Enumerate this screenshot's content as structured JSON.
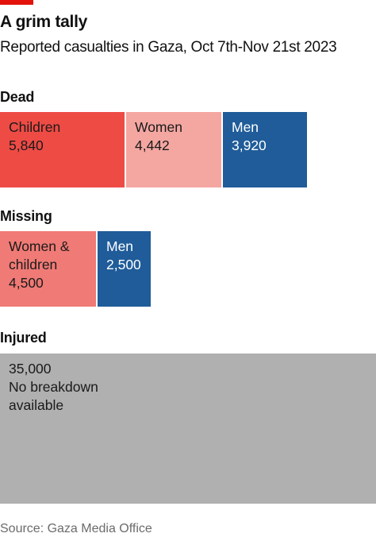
{
  "title": "A grim tally",
  "subtitle": "Reported casualties in Gaza, Oct 7th-Nov 21st 2023",
  "source": "Source: Gaza Media Office",
  "colors": {
    "accent": "#e3120b",
    "children": "#ee4b45",
    "women": "#f4a6a1",
    "men": "#1f5c99",
    "women_children": "#f07a75",
    "injured": "#b0b0b0"
  },
  "chart_data": {
    "type": "treemap",
    "groups": [
      {
        "name": "Dead",
        "items": [
          {
            "label": "Children",
            "value": 5840,
            "display": "5,840",
            "color": "#ee4b45",
            "text_color": "#1a1a1a"
          },
          {
            "label": "Women",
            "value": 4442,
            "display": "4,442",
            "color": "#f4a6a1",
            "text_color": "#1a1a1a"
          },
          {
            "label": "Men",
            "value": 3920,
            "display": "3,920",
            "color": "#1f5c99",
            "text_color": "#ffffff"
          }
        ]
      },
      {
        "name": "Missing",
        "items": [
          {
            "label": "Women &\nchildren",
            "value": 4500,
            "display": "4,500",
            "color": "#f07a75",
            "text_color": "#1a1a1a"
          },
          {
            "label": "Men",
            "value": 2500,
            "display": "2,500",
            "color": "#1f5c99",
            "text_color": "#ffffff"
          }
        ]
      },
      {
        "name": "Injured",
        "items": [
          {
            "label": "No breakdown\navailable",
            "value": 35000,
            "display": "35,000",
            "color": "#b0b0b0",
            "text_color": "#1a1a1a",
            "value_first": true
          }
        ]
      }
    ]
  }
}
